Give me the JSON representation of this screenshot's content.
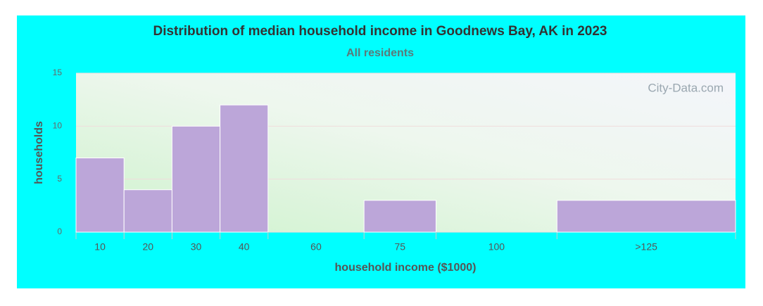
{
  "chart_data": {
    "type": "bar",
    "title": "Distribution of median household income in Goodnews Bay, AK in 2023",
    "subtitle": "All residents",
    "watermark": "City-Data.com",
    "xlabel": "household income ($1000)",
    "ylabel": "households",
    "categories": [
      "10",
      "20",
      "30",
      "40",
      "60",
      "75",
      "100",
      ">125"
    ],
    "values": [
      7,
      4,
      10,
      12,
      0,
      3,
      0,
      3
    ],
    "color": "#bca6d9",
    "ylim": [
      0,
      15
    ],
    "yticks": [
      0,
      5,
      10,
      15
    ],
    "grid": true
  }
}
